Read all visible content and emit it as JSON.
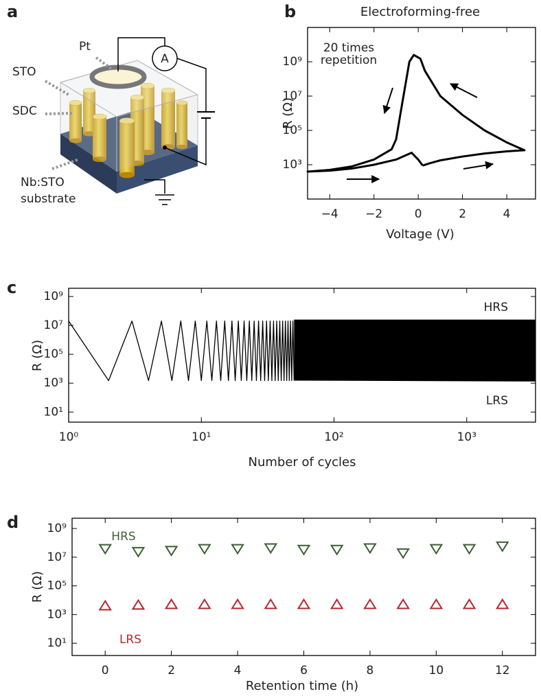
{
  "panel_labels": [
    "a",
    "b",
    "c",
    "d"
  ],
  "schematic": {
    "labels": [
      "Pt",
      "STO",
      "SDC",
      "Nb:STO",
      "substrate"
    ],
    "meter": "A"
  },
  "chart_data": [
    {
      "type": "line",
      "title": "Electroforming-free",
      "xlabel": "Voltage (V)",
      "ylabel": "R (Ω)",
      "annotations": [
        "20 times",
        "repetition"
      ],
      "xlim": [
        -5,
        5.3
      ],
      "xticks": [
        {
          "value": -4,
          "label": "−4"
        },
        {
          "value": -2,
          "label": "−2"
        },
        0,
        2,
        4
      ],
      "ylog": true,
      "ylim": [
        10,
        100000000000
      ],
      "yticks": [
        {
          "value": 1000,
          "label": "10³"
        },
        {
          "value": 100000,
          "label": "10⁵"
        },
        {
          "value": 10000000,
          "label": "10⁷"
        },
        {
          "value": 1000000000,
          "label": "10⁹"
        }
      ],
      "series": [
        {
          "color": "#000000",
          "x": [
            0.2,
            0.5,
            1,
            2,
            3,
            4,
            4.8,
            4,
            3,
            2,
            1,
            0.3,
            0.1,
            -0.2,
            -0.4,
            -0.8,
            -1,
            -1.2,
            -2,
            -3,
            -4,
            -5,
            -4,
            -3,
            -2,
            -1,
            -0.3,
            0,
            0.2
          ],
          "values": [
            900,
            1200,
            1800,
            3000,
            4500,
            6000,
            7000,
            20000,
            100000,
            800000,
            10000000,
            300000000,
            1500000000,
            2500000000,
            1000000000,
            1000000,
            30000,
            8000,
            2000,
            800,
            500,
            400,
            450,
            600,
            1000,
            2000,
            5000,
            2000,
            900
          ]
        }
      ]
    },
    {
      "type": "line",
      "xlabel": "Number of cycles",
      "ylabel": "R (Ω)",
      "annotations": [
        "HRS",
        "LRS"
      ],
      "xlog": true,
      "xlim": [
        1,
        3300
      ],
      "xticks": [
        {
          "value": 1,
          "label": "10⁰"
        },
        {
          "value": 10,
          "label": "10¹"
        },
        {
          "value": 100,
          "label": "10²"
        },
        {
          "value": 1000,
          "label": "10³"
        }
      ],
      "ylog": true,
      "ylim": [
        2,
        3700000000
      ],
      "yticks": [
        {
          "value": 10,
          "label": "10¹"
        },
        {
          "value": 1000,
          "label": "10³"
        },
        {
          "value": 100000,
          "label": "10⁵"
        },
        {
          "value": 10000000,
          "label": "10⁷"
        },
        {
          "value": 1000000000,
          "label": "10⁹"
        }
      ],
      "series": [
        {
          "color": "#000000",
          "x": [
            1,
            2,
            3,
            4,
            5,
            6,
            7,
            8,
            9,
            10,
            11,
            12,
            13,
            14,
            15,
            16,
            17,
            18,
            19,
            20,
            21,
            22,
            23,
            24,
            25,
            26,
            27,
            28,
            29,
            30,
            31,
            32,
            33,
            34,
            35,
            36,
            37,
            38,
            39,
            40,
            41,
            42,
            43,
            44,
            45,
            46,
            47,
            48,
            49,
            50
          ],
          "values": [
            20000000,
            1500,
            20000000,
            1500,
            20000000,
            1500,
            20000000,
            1500,
            20000000,
            1500,
            20000000,
            1500,
            20000000,
            1500,
            20000000,
            1500,
            20000000,
            1500,
            20000000,
            1500,
            20000000,
            1500,
            20000000,
            1500,
            20000000,
            1500,
            20000000,
            1500,
            20000000,
            1500,
            20000000,
            1500,
            20000000,
            1500,
            20000000,
            1500,
            20000000,
            1500,
            20000000,
            1500,
            20000000,
            1500,
            20000000,
            1500,
            20000000,
            1500,
            20000000,
            1500,
            20000000,
            1500
          ]
        },
        {
          "color": "#000000",
          "x": [
            50,
            3300
          ],
          "values": [
            25000000,
            25000000
          ],
          "lower": [
            1500,
            1300
          ]
        }
      ]
    },
    {
      "type": "scatter",
      "xlabel": "Retention time (h)",
      "ylabel": "R (Ω)",
      "xlim": [
        -1,
        13
      ],
      "xticks": [
        0,
        2,
        4,
        6,
        8,
        10,
        12
      ],
      "ylog": true,
      "ylim": [
        1.4,
        5200000000
      ],
      "yticks": [
        {
          "value": 10,
          "label": "10¹"
        },
        {
          "value": 1000,
          "label": "10³"
        },
        {
          "value": 100000,
          "label": "10⁵"
        },
        {
          "value": 10000000,
          "label": "10⁷"
        },
        {
          "value": 1000000000,
          "label": "10⁹"
        }
      ],
      "series": [
        {
          "name": "HRS",
          "color": "#3d5f34",
          "marker": "triangle-down",
          "x": [
            0,
            1,
            2,
            3,
            4,
            5,
            6,
            7,
            8,
            9,
            10,
            11,
            12
          ],
          "values": [
            40000000,
            25000000,
            30000000,
            40000000,
            40000000,
            45000000,
            35000000,
            35000000,
            45000000,
            20000000,
            40000000,
            40000000,
            60000000
          ]
        },
        {
          "name": "LRS",
          "color": "#b5282e",
          "marker": "triangle-up",
          "x": [
            0,
            1,
            2,
            3,
            4,
            5,
            6,
            7,
            8,
            9,
            10,
            11,
            12
          ],
          "values": [
            4000,
            4500,
            5000,
            5000,
            5000,
            5000,
            5000,
            5000,
            5000,
            5000,
            5000,
            5000,
            5000
          ]
        }
      ]
    }
  ]
}
